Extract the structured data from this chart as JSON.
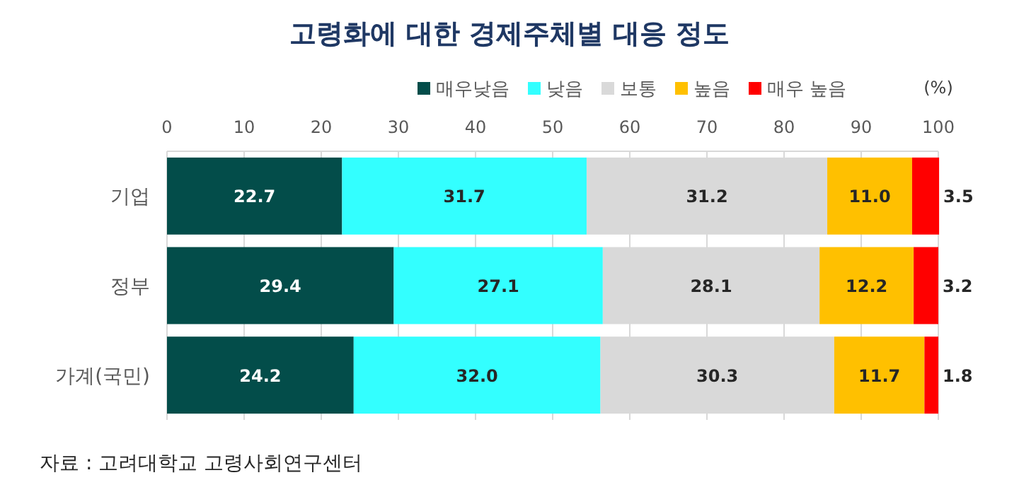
{
  "chart_data": {
    "type": "bar",
    "orientation": "horizontal",
    "stacked": true,
    "title": "고령화에 대한 경제주체별 대응 정도",
    "xlabel": "(%)",
    "categories": [
      "기업",
      "정부",
      "가계(국민)"
    ],
    "series": [
      {
        "name": "매우낮음",
        "color": "#034d4a",
        "values": [
          22.7,
          29.4,
          24.2
        ],
        "value_labels": [
          "22.7",
          "29.4",
          "24.2"
        ]
      },
      {
        "name": "낮음",
        "color": "#33ffff",
        "values": [
          31.7,
          27.1,
          32.0
        ],
        "value_labels": [
          "31.7",
          "27.1",
          "32.0"
        ]
      },
      {
        "name": "보통",
        "color": "#d9d9d9",
        "values": [
          31.2,
          28.1,
          30.3
        ],
        "value_labels": [
          "31.2",
          "28.1",
          "30.3"
        ]
      },
      {
        "name": "높음",
        "color": "#ffc000",
        "values": [
          11.0,
          12.2,
          11.7
        ],
        "value_labels": [
          "11.0",
          "12.2",
          "11.7"
        ]
      },
      {
        "name": "매우 높음",
        "color": "#ff0000",
        "values": [
          3.5,
          3.2,
          1.8
        ],
        "value_labels": [
          "3.5",
          "3.2",
          "1.8"
        ]
      }
    ],
    "xlim": [
      0,
      100
    ],
    "xticks": [
      0,
      10,
      20,
      30,
      40,
      50,
      60,
      70,
      80,
      90,
      100
    ],
    "grid": "x",
    "legend": "top right",
    "annotations": [
      "자료 : 고려대학교 고령사회연구센터"
    ]
  }
}
